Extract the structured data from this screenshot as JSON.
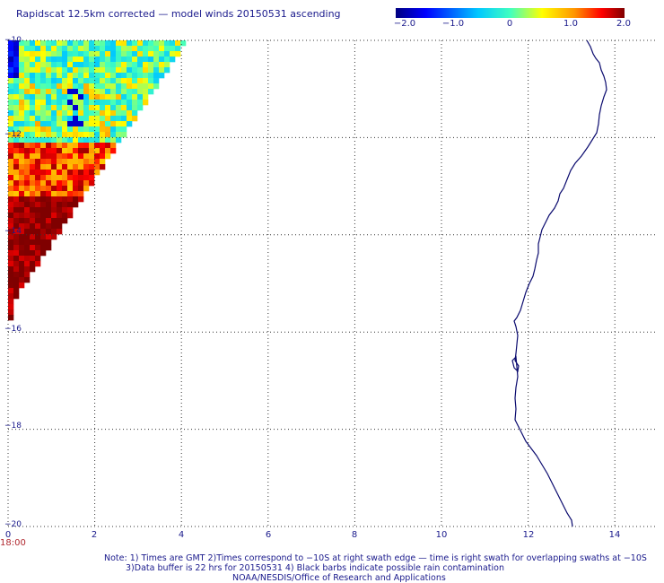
{
  "title": "Rapidscat 12.5km corrected — model winds 20150531 ascending",
  "colorbar": {
    "labels": [
      "−2.0",
      "−1.0",
      "0",
      "1.0",
      "2.0"
    ],
    "values": [
      -2.0,
      -1.0,
      0,
      1.0,
      2.0
    ],
    "colors": [
      "#00007f",
      "#0000ff",
      "#00c8ff",
      "#40ffc0",
      "#ffff00",
      "#ff9600",
      "#ff0000",
      "#7f0000"
    ]
  },
  "axes": {
    "x_ticks": [
      "0",
      "2",
      "4",
      "6",
      "8",
      "10",
      "12",
      "14"
    ],
    "x_values": [
      0,
      2,
      4,
      6,
      8,
      10,
      12,
      14
    ],
    "y_ticks": [
      "−10",
      "−12",
      "−14",
      "−16",
      "−18",
      "−20"
    ],
    "y_values": [
      -10,
      -12,
      -14,
      -16,
      -18,
      -20
    ],
    "x_range": [
      0,
      14.7
    ],
    "y_range": [
      -10,
      -20
    ],
    "grid": "dotted"
  },
  "time_label": "18:00",
  "swath": {
    "type": "heatmap",
    "description_units": "wind speed difference (m/s)",
    "lat_top": -10,
    "lat_bottom": -15.8,
    "lon_left": 0,
    "lon_right_at_top": 4.2,
    "pattern": "mixed blue-green-yellow near -10 to -12, orange-red near -12 to -13.5, dark red near -13.5 to -15.5"
  },
  "coastline_color": "#0a0a6e",
  "notes": [
    "Note: 1) Times are GMT 2)Times correspond to −10S at right swath edge — time is right swath for overlapping swaths at −10S",
    "3)Data buffer is 22 hrs for 20150531 4) Black barbs indicate possible rain contamination",
    "NOAA/NESDIS/Office of Research and Applications"
  ]
}
